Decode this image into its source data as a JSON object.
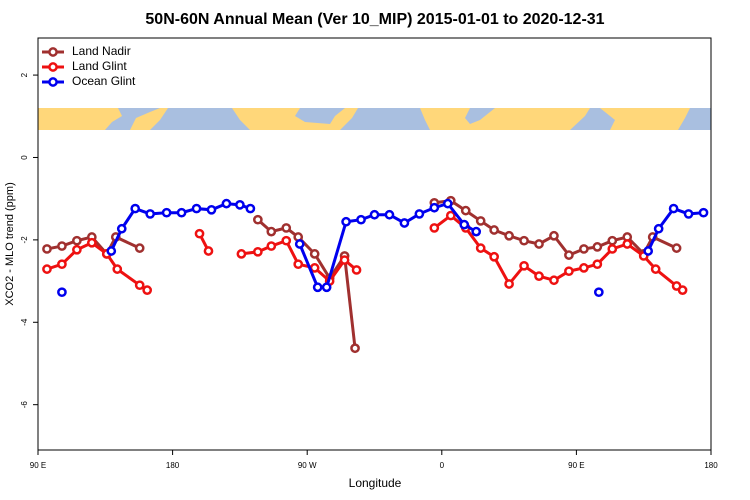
{
  "chart_data": {
    "type": "line",
    "title": "50N-60N Annual Mean (Ver 10_MIP)   2015-01-01 to 2020-12-31",
    "x_label": "Longitude",
    "y_label": "XCO2 - MLO trend (ppm)",
    "xlim": [
      90,
      540
    ],
    "ylim": [
      -7.1,
      2.9
    ],
    "xticks": [
      {
        "value": 90,
        "label": "90 E"
      },
      {
        "value": 180,
        "label": "180"
      },
      {
        "value": 270,
        "label": "90 W"
      },
      {
        "value": 360,
        "label": "0"
      },
      {
        "value": 450,
        "label": "90 E"
      },
      {
        "value": 540,
        "label": "180"
      }
    ],
    "yticks": [
      -6,
      -4,
      -2,
      0,
      2
    ],
    "legend": "top-left",
    "series": [
      {
        "name": "Land Nadir",
        "color": "#a0302f",
        "x": [
          96,
          106,
          116,
          126,
          136,
          142,
          158,
          null,
          237,
          246,
          256,
          264,
          275,
          285,
          295,
          302,
          null,
          355,
          366,
          376,
          386,
          395,
          405,
          415,
          425,
          435,
          445,
          455,
          464,
          474,
          484,
          495,
          501,
          517
        ],
        "values": [
          -2.22,
          -2.15,
          -2.02,
          -1.93,
          -2.34,
          -1.93,
          -2.2,
          null,
          -1.51,
          -1.8,
          -1.71,
          -1.93,
          -2.34,
          -2.93,
          -2.39,
          -4.63,
          null,
          -1.1,
          -1.05,
          -1.29,
          -1.54,
          -1.76,
          -1.9,
          -2.02,
          -2.1,
          -1.9,
          -2.37,
          -2.22,
          -2.17,
          -2.02,
          -1.93,
          -2.34,
          -1.93,
          -2.2
        ]
      },
      {
        "name": "Land Glint",
        "color": "#ee1111",
        "x": [
          96,
          106,
          116,
          126,
          136,
          143,
          158,
          163,
          null,
          198,
          204,
          null,
          226,
          237,
          246,
          256,
          264,
          275,
          285,
          295,
          303,
          null,
          355,
          366,
          376,
          386,
          395,
          405,
          415,
          425,
          435,
          445,
          455,
          464,
          474,
          484,
          495,
          503,
          517,
          521
        ],
        "values": [
          -2.71,
          -2.59,
          -2.24,
          -2.07,
          -2.34,
          -2.71,
          -3.1,
          -3.22,
          null,
          -1.85,
          -2.27,
          null,
          -2.34,
          -2.29,
          -2.15,
          -2.02,
          -2.59,
          -2.68,
          -3.0,
          -2.49,
          -2.73,
          null,
          -1.71,
          -1.41,
          -1.71,
          -2.2,
          -2.41,
          -3.07,
          -2.63,
          -2.88,
          -2.98,
          -2.76,
          -2.68,
          -2.59,
          -2.22,
          -2.1,
          -2.39,
          -2.71,
          -3.12,
          -3.22
        ]
      },
      {
        "name": "Ocean Glint",
        "color": "#0000ee",
        "x": [
          106,
          null,
          139,
          146,
          155,
          165,
          176,
          186,
          196,
          206,
          216,
          225,
          232,
          null,
          265,
          277,
          283,
          296,
          306,
          315,
          325,
          335,
          345,
          355,
          364,
          375,
          383,
          null,
          465,
          null,
          498,
          505,
          515,
          525,
          535
        ],
        "values": [
          -3.27,
          null,
          -2.27,
          -1.73,
          -1.24,
          -1.37,
          -1.34,
          -1.34,
          -1.24,
          -1.27,
          -1.12,
          -1.15,
          -1.24,
          null,
          -2.1,
          -3.15,
          -3.15,
          -1.56,
          -1.51,
          -1.39,
          -1.39,
          -1.59,
          -1.37,
          -1.22,
          -1.12,
          -1.63,
          -1.8,
          null,
          -3.27,
          null,
          -2.27,
          -1.73,
          -1.24,
          -1.37,
          -1.34
        ]
      }
    ]
  }
}
